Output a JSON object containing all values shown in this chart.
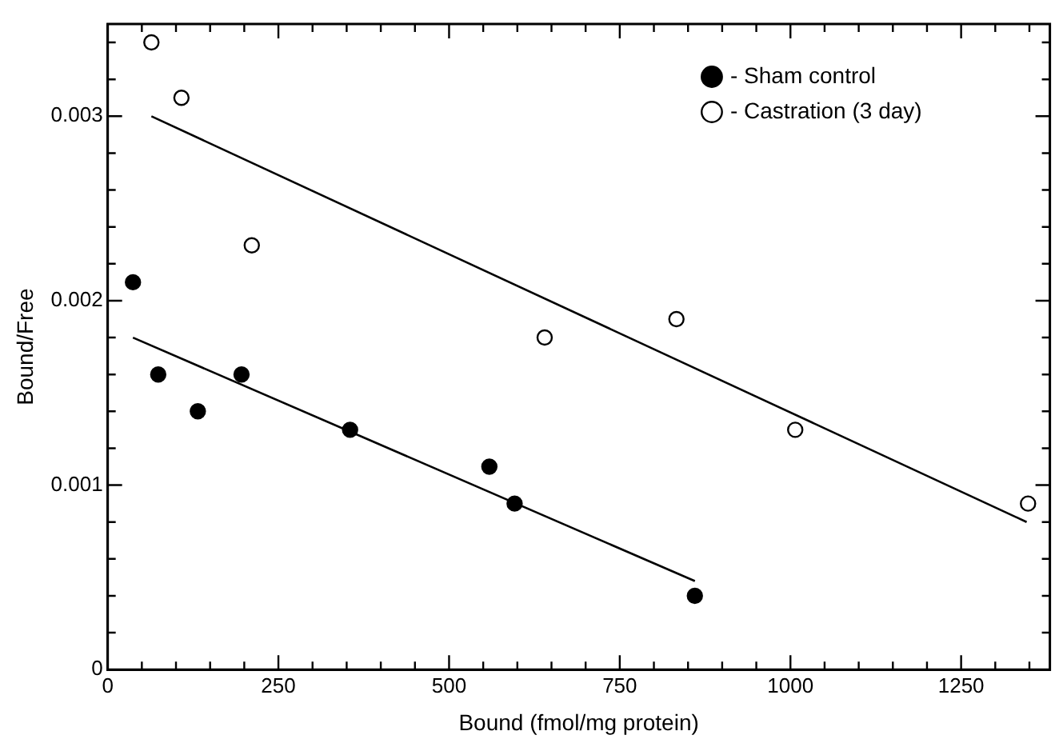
{
  "chart_data": {
    "type": "scatter",
    "xlabel": "Bound (fmol/mg protein)",
    "ylabel": "Bound/Free",
    "xlim": [
      0,
      1380
    ],
    "ylim": [
      0,
      0.0035
    ],
    "xticks": [
      0,
      {
        "value": 50,
        "label": null
      },
      {
        "value": 100,
        "label": null
      },
      {
        "value": 150,
        "label": null
      },
      {
        "value": 200,
        "label": null
      },
      250,
      {
        "value": 300,
        "label": null
      },
      {
        "value": 350,
        "label": null
      },
      {
        "value": 400,
        "label": null
      },
      {
        "value": 450,
        "label": null
      },
      500,
      {
        "value": 550,
        "label": null
      },
      {
        "value": 600,
        "label": null
      },
      {
        "value": 650,
        "label": null
      },
      {
        "value": 700,
        "label": null
      },
      750,
      {
        "value": 800,
        "label": null
      },
      {
        "value": 850,
        "label": null
      },
      {
        "value": 900,
        "label": null
      },
      {
        "value": 950,
        "label": null
      },
      1000,
      {
        "value": 1050,
        "label": null
      },
      {
        "value": 1100,
        "label": null
      },
      {
        "value": 1150,
        "label": null
      },
      {
        "value": 1200,
        "label": null
      },
      1250,
      {
        "value": 1300,
        "label": null
      },
      {
        "value": 1350,
        "label": null
      }
    ],
    "yticks": [
      0,
      {
        "value": 0.0002,
        "label": null
      },
      {
        "value": 0.0004,
        "label": null
      },
      {
        "value": 0.0006,
        "label": null
      },
      {
        "value": 0.0008,
        "label": null
      },
      0.001,
      {
        "value": 0.0012,
        "label": null
      },
      {
        "value": 0.0014,
        "label": null
      },
      {
        "value": 0.0016,
        "label": null
      },
      {
        "value": 0.0018,
        "label": null
      },
      0.002,
      {
        "value": 0.0022,
        "label": null
      },
      {
        "value": 0.0024,
        "label": null
      },
      {
        "value": 0.0026,
        "label": null
      },
      {
        "value": 0.0028,
        "label": null
      },
      0.003,
      {
        "value": 0.0032,
        "label": null
      },
      {
        "value": 0.0034,
        "label": null
      }
    ],
    "grid": false,
    "legend": "top right",
    "marker": "circle",
    "series": [
      {
        "name": "- Sham control",
        "color": "#000000",
        "x": [
          37,
          74,
          132,
          196,
          355,
          559,
          596,
          860
        ],
        "values": [
          0.0021,
          0.0016,
          0.0014,
          0.0016,
          0.0013,
          0.0011,
          0.0009,
          0.0004
        ]
      },
      {
        "name": "- Castration (3 day)",
        "color": "#ffffff",
        "x": [
          64,
          108,
          211,
          640,
          833,
          1007,
          1348
        ],
        "values": [
          0.0034,
          0.0031,
          0.0023,
          0.0018,
          0.0019,
          0.0013,
          0.0009
        ]
      },
      {
        "type": "line",
        "color": "#000000",
        "marker": "none",
        "x": [
          37,
          860
        ],
        "values": [
          0.0018,
          0.00048
        ]
      },
      {
        "type": "line",
        "color": "#000000",
        "marker": "none",
        "x": [
          64,
          1346
        ],
        "values": [
          0.003,
          0.0008
        ]
      }
    ]
  }
}
